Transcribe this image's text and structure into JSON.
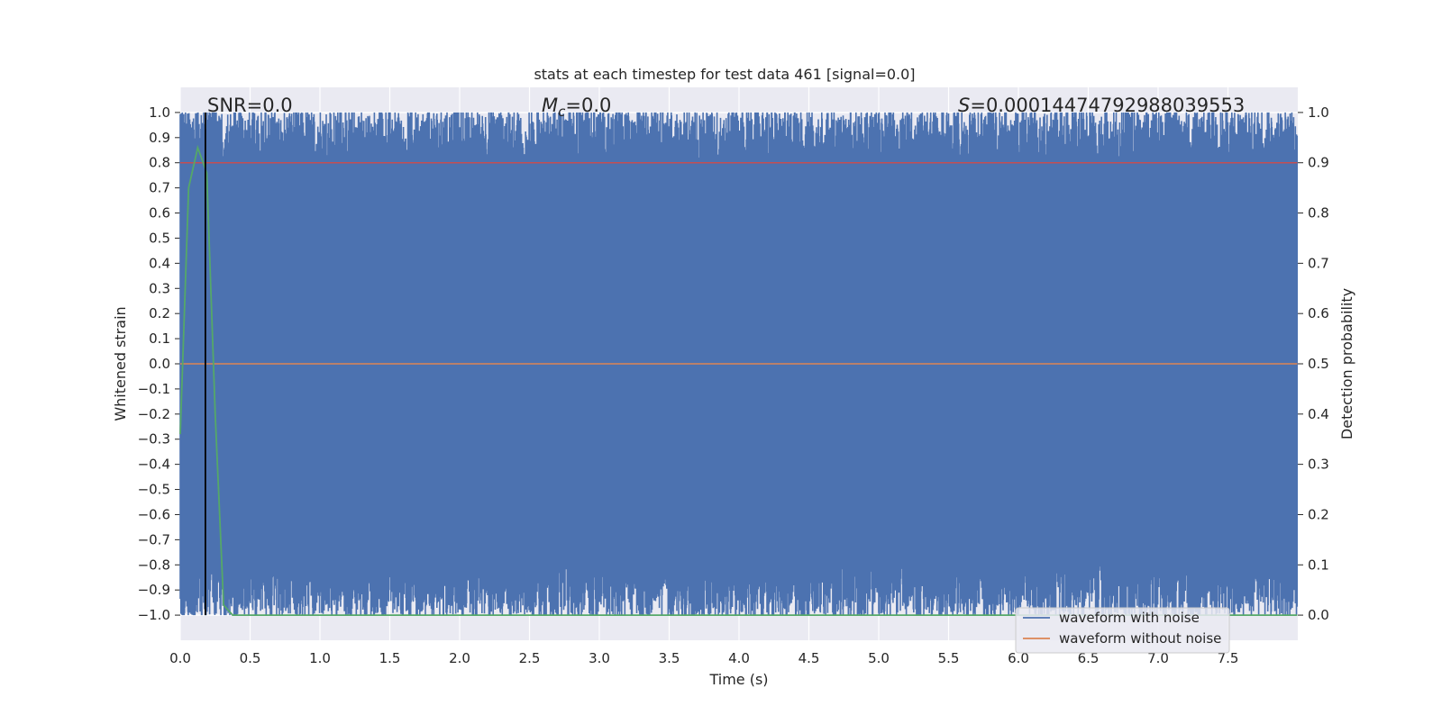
{
  "chart_data": {
    "type": "line",
    "title": "stats at each timestep for test data 461 [signal=0.0]",
    "xlabel": "Time (s)",
    "ylabel": "Whitened strain",
    "y2label": "Detection probability",
    "xlim": [
      0.0,
      8.0
    ],
    "ylim": [
      -1.1,
      1.1
    ],
    "y2lim": [
      -0.05,
      1.05
    ],
    "x_ticks": [
      "0.0",
      "0.5",
      "1.0",
      "1.5",
      "2.0",
      "2.5",
      "3.0",
      "3.5",
      "4.0",
      "4.5",
      "5.0",
      "5.5",
      "6.0",
      "6.5",
      "7.0",
      "7.5"
    ],
    "y_ticks": [
      "1.0",
      "0.9",
      "0.8",
      "0.7",
      "0.6",
      "0.5",
      "0.4",
      "0.3",
      "0.2",
      "0.1",
      "0.0",
      "−0.1",
      "−0.2",
      "−0.3",
      "−0.4",
      "−0.5",
      "−0.6",
      "−0.7",
      "−0.8",
      "−0.9",
      "−1.0"
    ],
    "y2_ticks": [
      "1.0",
      "0.9",
      "0.8",
      "0.7",
      "0.6",
      "0.5",
      "0.4",
      "0.3",
      "0.2",
      "0.1",
      "0.0"
    ],
    "grid": true,
    "legend_position": "lower-right",
    "annotations": {
      "snr": "SNR=0.0",
      "mc_symbol": "M",
      "mc_sub": "c",
      "mc_value": "=0.0",
      "s_symbol": "S",
      "s_value": "=0.00014474792988039553"
    },
    "series": [
      {
        "name": "waveform with noise",
        "color": "#4c72b0",
        "axis": "left",
        "description_values": {
          "x_range": [
            0.0,
            7.996
          ],
          "approx_min": -1.0,
          "approx_max": 1.0
        }
      },
      {
        "name": "waveform without noise",
        "color": "#dd8452",
        "axis": "left",
        "x": [
          0.0,
          7.996
        ],
        "y": [
          0.0,
          0.0
        ]
      },
      {
        "color": "#55a868",
        "axis": "right",
        "x": [
          0.0,
          0.06,
          0.125,
          0.19,
          0.25,
          0.31,
          0.375,
          0.5,
          1.0,
          2.0,
          3.0,
          4.0,
          5.0,
          6.0,
          7.0,
          7.996
        ],
        "y": [
          0.36,
          0.85,
          0.93,
          0.88,
          0.4,
          0.02,
          0.0,
          0.0,
          0.0,
          0.0,
          0.0,
          0.0,
          0.0,
          0.0,
          0.0,
          0.0
        ]
      },
      {
        "color": "#c44e52",
        "axis": "right",
        "x": [
          0.0,
          7.996
        ],
        "y": [
          0.9,
          0.9
        ]
      }
    ],
    "vline": {
      "x": 0.18,
      "color": "#000000"
    }
  }
}
